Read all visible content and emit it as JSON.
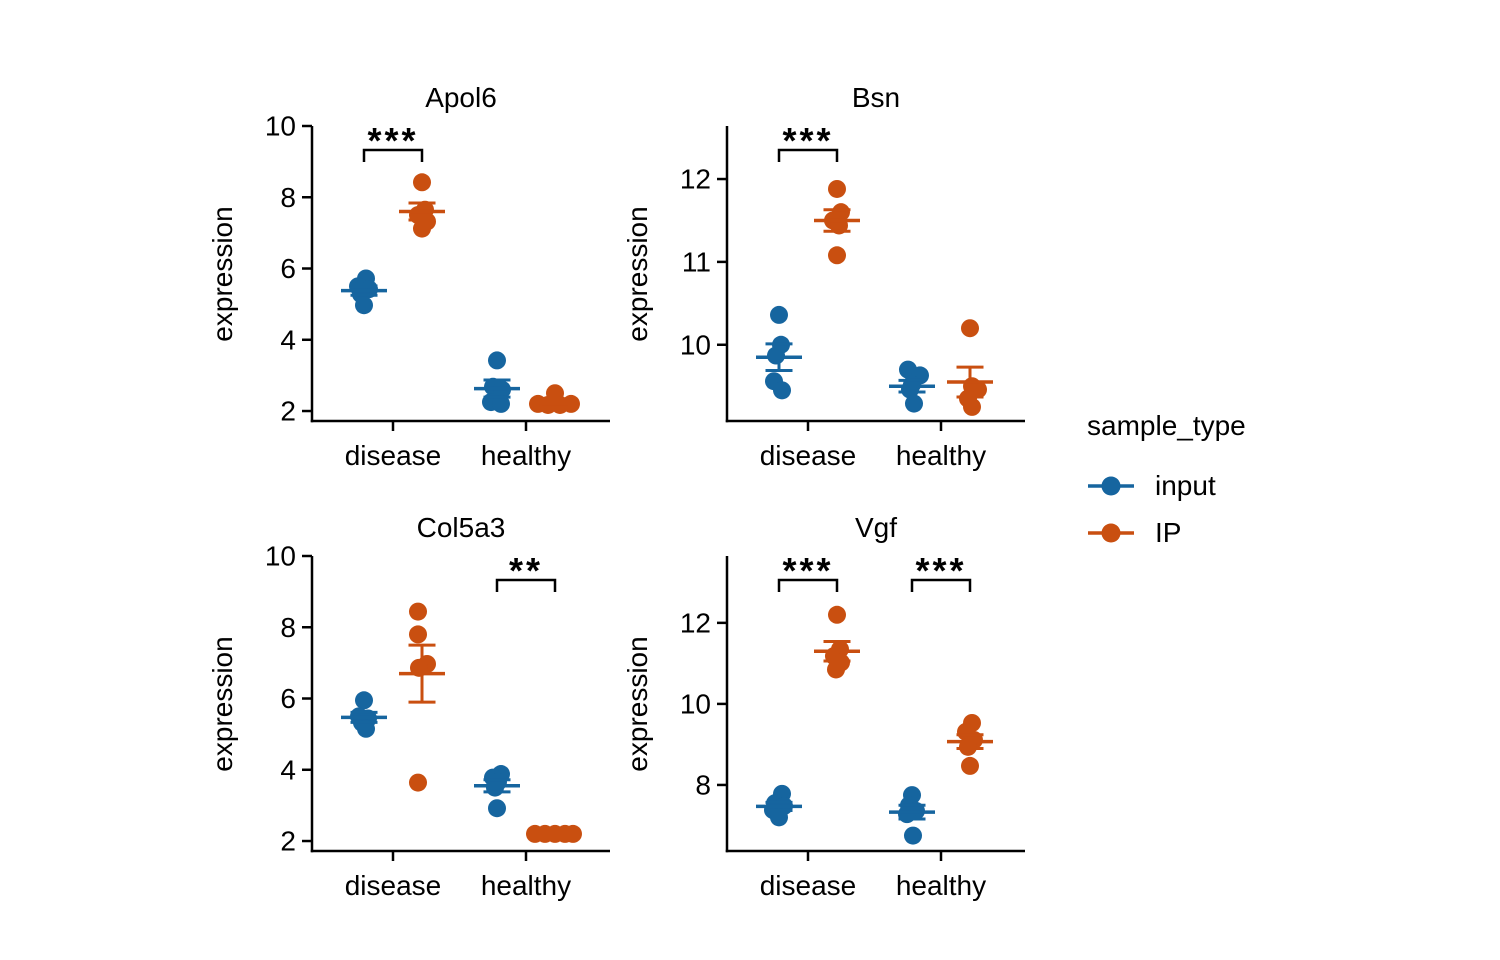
{
  "figure": {
    "background": "#ffffff",
    "text_color": "#000000"
  },
  "colors": {
    "input": "#16659F",
    "IP": "#C94F10",
    "axis": "#000000"
  },
  "legend": {
    "title": "sample_type",
    "position": "right-center",
    "entries": [
      {
        "label": "input",
        "color": "#16659F",
        "marker": "dot-on-line"
      },
      {
        "label": "IP",
        "color": "#C94F10",
        "marker": "dot-on-line"
      }
    ]
  },
  "chart_data": [
    {
      "type": "scatter",
      "title": "Apol6",
      "xlabel": "",
      "ylabel": "expression",
      "categories": [
        "disease",
        "healthy"
      ],
      "series_names": [
        "input",
        "IP"
      ],
      "ylim": [
        1.72,
        10.0
      ],
      "yticks": [
        2,
        4,
        6,
        8,
        10
      ],
      "grid": false,
      "groups": [
        {
          "category": "disease",
          "series": "input",
          "values": [
            5.72,
            5.5,
            5.42,
            5.28,
            4.97
          ],
          "jitter": [
            2,
            -6,
            5,
            -3,
            0
          ],
          "mean": 5.38,
          "sem": 0.13
        },
        {
          "category": "disease",
          "series": "IP",
          "values": [
            8.42,
            7.65,
            7.5,
            7.32,
            7.12
          ],
          "jitter": [
            0,
            3,
            -4,
            5,
            0
          ],
          "mean": 7.6,
          "sem": 0.24
        },
        {
          "category": "healthy",
          "series": "input",
          "values": [
            3.42,
            2.68,
            2.6,
            2.25,
            2.2
          ],
          "jitter": [
            0,
            -4,
            5,
            -6,
            4
          ],
          "mean": 2.63,
          "sem": 0.24
        },
        {
          "category": "healthy",
          "series": "IP",
          "values": [
            2.5,
            2.2,
            2.17,
            2.17,
            2.2
          ],
          "jitter": [
            0,
            -17,
            -7,
            5,
            16
          ],
          "mean": 2.25,
          "sem": 0.06
        }
      ],
      "significance": [
        {
          "category": "disease",
          "label": "***"
        }
      ]
    },
    {
      "type": "scatter",
      "title": "Bsn",
      "xlabel": "",
      "ylabel": "expression",
      "categories": [
        "disease",
        "healthy"
      ],
      "series_names": [
        "input",
        "IP"
      ],
      "ylim": [
        9.08,
        12.64
      ],
      "yticks": [
        10,
        11,
        12
      ],
      "grid": false,
      "groups": [
        {
          "category": "disease",
          "series": "input",
          "values": [
            10.36,
            10.0,
            9.87,
            9.56,
            9.45
          ],
          "jitter": [
            0,
            2,
            -3,
            -5,
            3
          ],
          "mean": 9.85,
          "sem": 0.16
        },
        {
          "category": "disease",
          "series": "IP",
          "values": [
            11.88,
            11.6,
            11.5,
            11.44,
            11.08
          ],
          "jitter": [
            0,
            4,
            -4,
            2,
            0
          ],
          "mean": 11.5,
          "sem": 0.13
        },
        {
          "category": "healthy",
          "series": "input",
          "values": [
            9.7,
            9.63,
            9.52,
            9.46,
            9.29
          ],
          "jitter": [
            -4,
            8,
            0,
            -2,
            2
          ],
          "mean": 9.5,
          "sem": 0.07
        },
        {
          "category": "healthy",
          "series": "IP",
          "values": [
            10.2,
            9.5,
            9.46,
            9.35,
            9.25
          ],
          "jitter": [
            0,
            2,
            8,
            -2,
            2
          ],
          "mean": 9.55,
          "sem": 0.18
        }
      ],
      "significance": [
        {
          "category": "disease",
          "label": "***"
        }
      ]
    },
    {
      "type": "scatter",
      "title": "Col5a3",
      "xlabel": "",
      "ylabel": "expression",
      "categories": [
        "disease",
        "healthy"
      ],
      "series_names": [
        "input",
        "IP"
      ],
      "ylim": [
        1.72,
        10.0
      ],
      "yticks": [
        2,
        4,
        6,
        8,
        10
      ],
      "grid": false,
      "groups": [
        {
          "category": "disease",
          "series": "input",
          "values": [
            5.95,
            5.5,
            5.44,
            5.32,
            5.15
          ],
          "jitter": [
            0,
            -5,
            4,
            -2,
            2
          ],
          "mean": 5.47,
          "sem": 0.14
        },
        {
          "category": "disease",
          "series": "IP",
          "values": [
            8.44,
            7.8,
            6.97,
            6.86,
            3.64
          ],
          "jitter": [
            -4,
            -4,
            5,
            -3,
            -4
          ],
          "mean": 6.7,
          "sem": 0.8
        },
        {
          "category": "healthy",
          "series": "input",
          "values": [
            3.88,
            3.78,
            3.66,
            3.5,
            2.92
          ],
          "jitter": [
            4,
            -4,
            1,
            -2,
            0
          ],
          "mean": 3.55,
          "sem": 0.17
        },
        {
          "category": "healthy",
          "series": "IP",
          "values": [
            2.2,
            2.2,
            2.2,
            2.2,
            2.2
          ],
          "jitter": [
            -20,
            -10,
            0,
            10,
            18
          ],
          "mean": 2.2,
          "sem": 0.015
        }
      ],
      "significance": [
        {
          "category": "healthy",
          "label": "**"
        }
      ]
    },
    {
      "type": "scatter",
      "title": "Vgf",
      "xlabel": "",
      "ylabel": "expression",
      "categories": [
        "disease",
        "healthy"
      ],
      "series_names": [
        "input",
        "IP"
      ],
      "ylim": [
        6.37,
        13.65
      ],
      "yticks": [
        8,
        10,
        12
      ],
      "grid": false,
      "groups": [
        {
          "category": "disease",
          "series": "input",
          "values": [
            7.78,
            7.55,
            7.48,
            7.38,
            7.2
          ],
          "jitter": [
            3,
            -4,
            5,
            -6,
            0
          ],
          "mean": 7.47,
          "sem": 0.1
        },
        {
          "category": "disease",
          "series": "IP",
          "values": [
            12.2,
            11.35,
            11.18,
            11.02,
            10.85
          ],
          "jitter": [
            0,
            3,
            -3,
            4,
            -1
          ],
          "mean": 11.3,
          "sem": 0.24
        },
        {
          "category": "healthy",
          "series": "input",
          "values": [
            7.75,
            7.5,
            7.36,
            7.28,
            6.75
          ],
          "jitter": [
            0,
            -3,
            4,
            -5,
            1
          ],
          "mean": 7.33,
          "sem": 0.17
        },
        {
          "category": "healthy",
          "series": "IP",
          "values": [
            9.53,
            9.31,
            9.11,
            8.94,
            8.47
          ],
          "jitter": [
            2,
            -4,
            4,
            -2,
            0
          ],
          "mean": 9.07,
          "sem": 0.17
        }
      ],
      "significance": [
        {
          "category": "disease",
          "label": "***"
        },
        {
          "category": "healthy",
          "label": "***"
        }
      ]
    }
  ]
}
